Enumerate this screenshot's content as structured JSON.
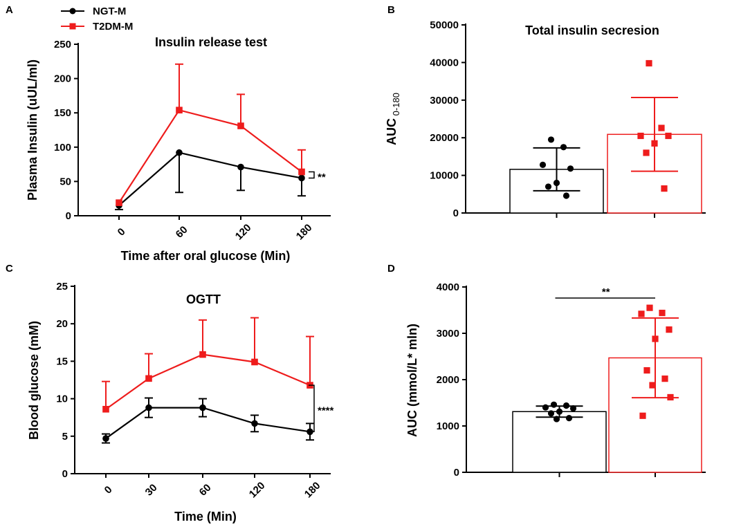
{
  "colors": {
    "ngt": "#000000",
    "t2dm": "#ee1c1c"
  },
  "legend": [
    {
      "label": "NGT-M",
      "color": "#000000",
      "marker": "circle"
    },
    {
      "label": "T2DM-M",
      "color": "#ee1c1c",
      "marker": "square"
    }
  ],
  "chart_data": [
    {
      "id": "A",
      "panel_label": "A",
      "type": "line",
      "title": "Insulin release test",
      "xlabel": "Time after oral glucose (Min)",
      "ylabel": "Plasma Insulin (uUL/ml)",
      "categories": [
        "0",
        "60",
        "120",
        "180"
      ],
      "ylim": [
        0,
        250
      ],
      "yticks": [
        0,
        50,
        100,
        150,
        200,
        250
      ],
      "series": [
        {
          "name": "NGT-M",
          "color": "#000000",
          "marker": "circle",
          "values": [
            15,
            92,
            71,
            55
          ],
          "err_up": [
            0,
            0,
            0,
            0
          ],
          "err_down": [
            6,
            58,
            34,
            26
          ]
        },
        {
          "name": "T2DM-M",
          "color": "#ee1c1c",
          "marker": "square",
          "values": [
            19,
            154,
            131,
            64
          ],
          "err_up": [
            0,
            67,
            46,
            32
          ],
          "err_down": [
            0,
            0,
            0,
            0
          ]
        }
      ],
      "significance": "**"
    },
    {
      "id": "B",
      "panel_label": "B",
      "type": "bar",
      "title": "Total insulin secresion",
      "ylabel_main": "AUC",
      "ylabel_sub": "0-180",
      "ylim": [
        0,
        50000
      ],
      "yticks": [
        0,
        10000,
        20000,
        30000,
        40000,
        50000
      ],
      "series": [
        {
          "name": "NGT-M",
          "color": "#000000",
          "marker": "circle",
          "mean": 11600,
          "sd": 5700,
          "points": [
            19500,
            17500,
            12800,
            11800,
            8000,
            7000,
            4600
          ]
        },
        {
          "name": "T2DM-M",
          "color": "#ee1c1c",
          "marker": "square",
          "mean": 20900,
          "sd": 9800,
          "points": [
            39800,
            22600,
            20500,
            20500,
            18500,
            16000,
            6500
          ]
        }
      ]
    },
    {
      "id": "C",
      "panel_label": "C",
      "type": "line",
      "title": "OGTT",
      "xlabel": "Time  (Min)",
      "ylabel": "Blood glucose (mM)",
      "categories": [
        "0",
        "30",
        "60",
        "120",
        "180"
      ],
      "ylim": [
        0,
        25
      ],
      "yticks": [
        0,
        5,
        10,
        15,
        20,
        25
      ],
      "series": [
        {
          "name": "NGT-M",
          "color": "#000000",
          "marker": "circle",
          "values": [
            4.7,
            8.8,
            8.8,
            6.7,
            5.6
          ],
          "err_up": [
            0.6,
            1.3,
            1.2,
            1.1,
            1.1
          ],
          "err_down": [
            0.6,
            1.3,
            1.2,
            1.1,
            1.1
          ]
        },
        {
          "name": "T2DM-M",
          "color": "#ee1c1c",
          "marker": "square",
          "values": [
            8.6,
            12.7,
            15.9,
            14.9,
            11.8
          ],
          "err_up": [
            3.7,
            3.3,
            4.6,
            5.9,
            6.5
          ],
          "err_down": [
            0,
            0,
            0,
            0,
            0
          ]
        }
      ],
      "significance": "****"
    },
    {
      "id": "D",
      "panel_label": "D",
      "type": "bar",
      "ylabel": "AUC (mmol/L* mln)",
      "ylim": [
        0,
        4000
      ],
      "yticks": [
        0,
        1000,
        2000,
        3000,
        4000
      ],
      "series": [
        {
          "name": "NGT-M",
          "color": "#000000",
          "marker": "circle",
          "mean": 1310,
          "sd": 120,
          "points": [
            1460,
            1440,
            1400,
            1380,
            1310,
            1270,
            1170,
            1150
          ]
        },
        {
          "name": "T2DM-M",
          "color": "#ee1c1c",
          "marker": "square",
          "mean": 2470,
          "sd": 860,
          "points": [
            3550,
            3440,
            3420,
            3080,
            2880,
            2200,
            2020,
            1880,
            1620,
            1220
          ]
        }
      ],
      "significance": "**"
    }
  ]
}
